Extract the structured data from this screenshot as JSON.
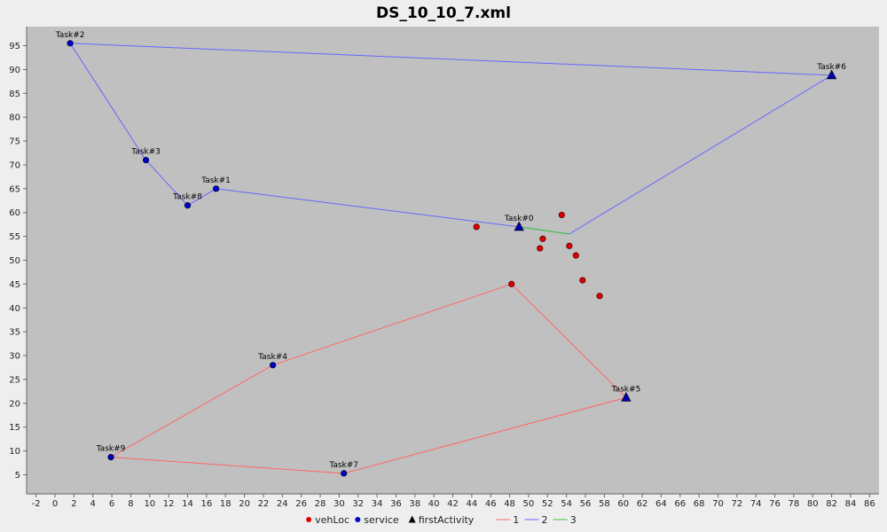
{
  "chart_data": {
    "type": "scatter",
    "title": "DS_10_10_7.xml",
    "xlabel": "",
    "ylabel": "",
    "xlim": [
      -3,
      87
    ],
    "ylim": [
      1,
      99
    ],
    "x_ticks": [
      -2,
      0,
      2,
      4,
      6,
      8,
      10,
      12,
      14,
      16,
      18,
      20,
      22,
      24,
      26,
      28,
      30,
      32,
      34,
      36,
      38,
      40,
      42,
      44,
      46,
      48,
      50,
      52,
      54,
      56,
      58,
      60,
      62,
      64,
      66,
      68,
      70,
      72,
      74,
      76,
      78,
      80,
      82,
      84,
      86
    ],
    "y_ticks": [
      5,
      10,
      15,
      20,
      25,
      30,
      35,
      40,
      45,
      50,
      55,
      60,
      65,
      70,
      75,
      80,
      85,
      90,
      95
    ],
    "grid": false,
    "legend_position": "bottom",
    "colors": {
      "plot_background": "#c0c0c0",
      "page_background": "#eeeeee",
      "vehLoc": "#dd0000",
      "service": "#0000cc",
      "firstActivity": "#0000aa",
      "route_1": "#ff6666",
      "route_2": "#6666ff",
      "route_3": "#33cc33"
    },
    "legend": [
      {
        "label": "vehLoc",
        "marker": "circle",
        "color": "#dd0000"
      },
      {
        "label": "service",
        "marker": "circle",
        "color": "#0000cc"
      },
      {
        "label": "firstActivity",
        "marker": "triangle",
        "color": "#000000"
      },
      {
        "label": "1",
        "marker": "line",
        "color": "#ff6666"
      },
      {
        "label": "2",
        "marker": "line",
        "color": "#6666ff"
      },
      {
        "label": "3",
        "marker": "line",
        "color": "#33cc33"
      }
    ],
    "tasks": [
      {
        "label": "Task#0",
        "x": 49,
        "y": 57,
        "kind": "firstActivity"
      },
      {
        "label": "Task#1",
        "x": 17,
        "y": 65,
        "kind": "service"
      },
      {
        "label": "Task#2",
        "x": 1.6,
        "y": 95.5,
        "kind": "service"
      },
      {
        "label": "Task#3",
        "x": 9.6,
        "y": 71,
        "kind": "service"
      },
      {
        "label": "Task#4",
        "x": 23,
        "y": 28,
        "kind": "service"
      },
      {
        "label": "Task#5",
        "x": 60.3,
        "y": 21.2,
        "kind": "firstActivity"
      },
      {
        "label": "Task#6",
        "x": 82,
        "y": 88.8,
        "kind": "firstActivity"
      },
      {
        "label": "Task#7",
        "x": 30.5,
        "y": 5.3,
        "kind": "service"
      },
      {
        "label": "Task#8",
        "x": 14,
        "y": 61.5,
        "kind": "service"
      },
      {
        "label": "Task#9",
        "x": 5.9,
        "y": 8.7,
        "kind": "service"
      }
    ],
    "vehLoc": [
      {
        "x": 44.5,
        "y": 57
      },
      {
        "x": 53.5,
        "y": 59.5
      },
      {
        "x": 51.5,
        "y": 54.5
      },
      {
        "x": 51.2,
        "y": 52.5
      },
      {
        "x": 54.3,
        "y": 53
      },
      {
        "x": 55,
        "y": 51
      },
      {
        "x": 55.7,
        "y": 45.8
      },
      {
        "x": 57.5,
        "y": 42.5
      },
      {
        "x": 48.2,
        "y": 45
      }
    ],
    "series": [
      {
        "name": "1",
        "color": "#ff6666",
        "points": [
          [
            60.3,
            21.2
          ],
          [
            48.2,
            45
          ],
          [
            23,
            28
          ],
          [
            5.9,
            8.7
          ],
          [
            30.5,
            5.3
          ],
          [
            60.3,
            21.2
          ]
        ]
      },
      {
        "name": "2",
        "color": "#6666ff",
        "points": [
          [
            49,
            57
          ],
          [
            17,
            65
          ],
          [
            14,
            61.5
          ],
          [
            9.6,
            71
          ],
          [
            1.6,
            95.5
          ],
          [
            82,
            88.8
          ],
          [
            54.3,
            55.5
          ],
          [
            49,
            57
          ]
        ]
      },
      {
        "name": "3",
        "color": "#33cc33",
        "points": [
          [
            49,
            57
          ],
          [
            54.3,
            55.5
          ]
        ]
      }
    ]
  }
}
